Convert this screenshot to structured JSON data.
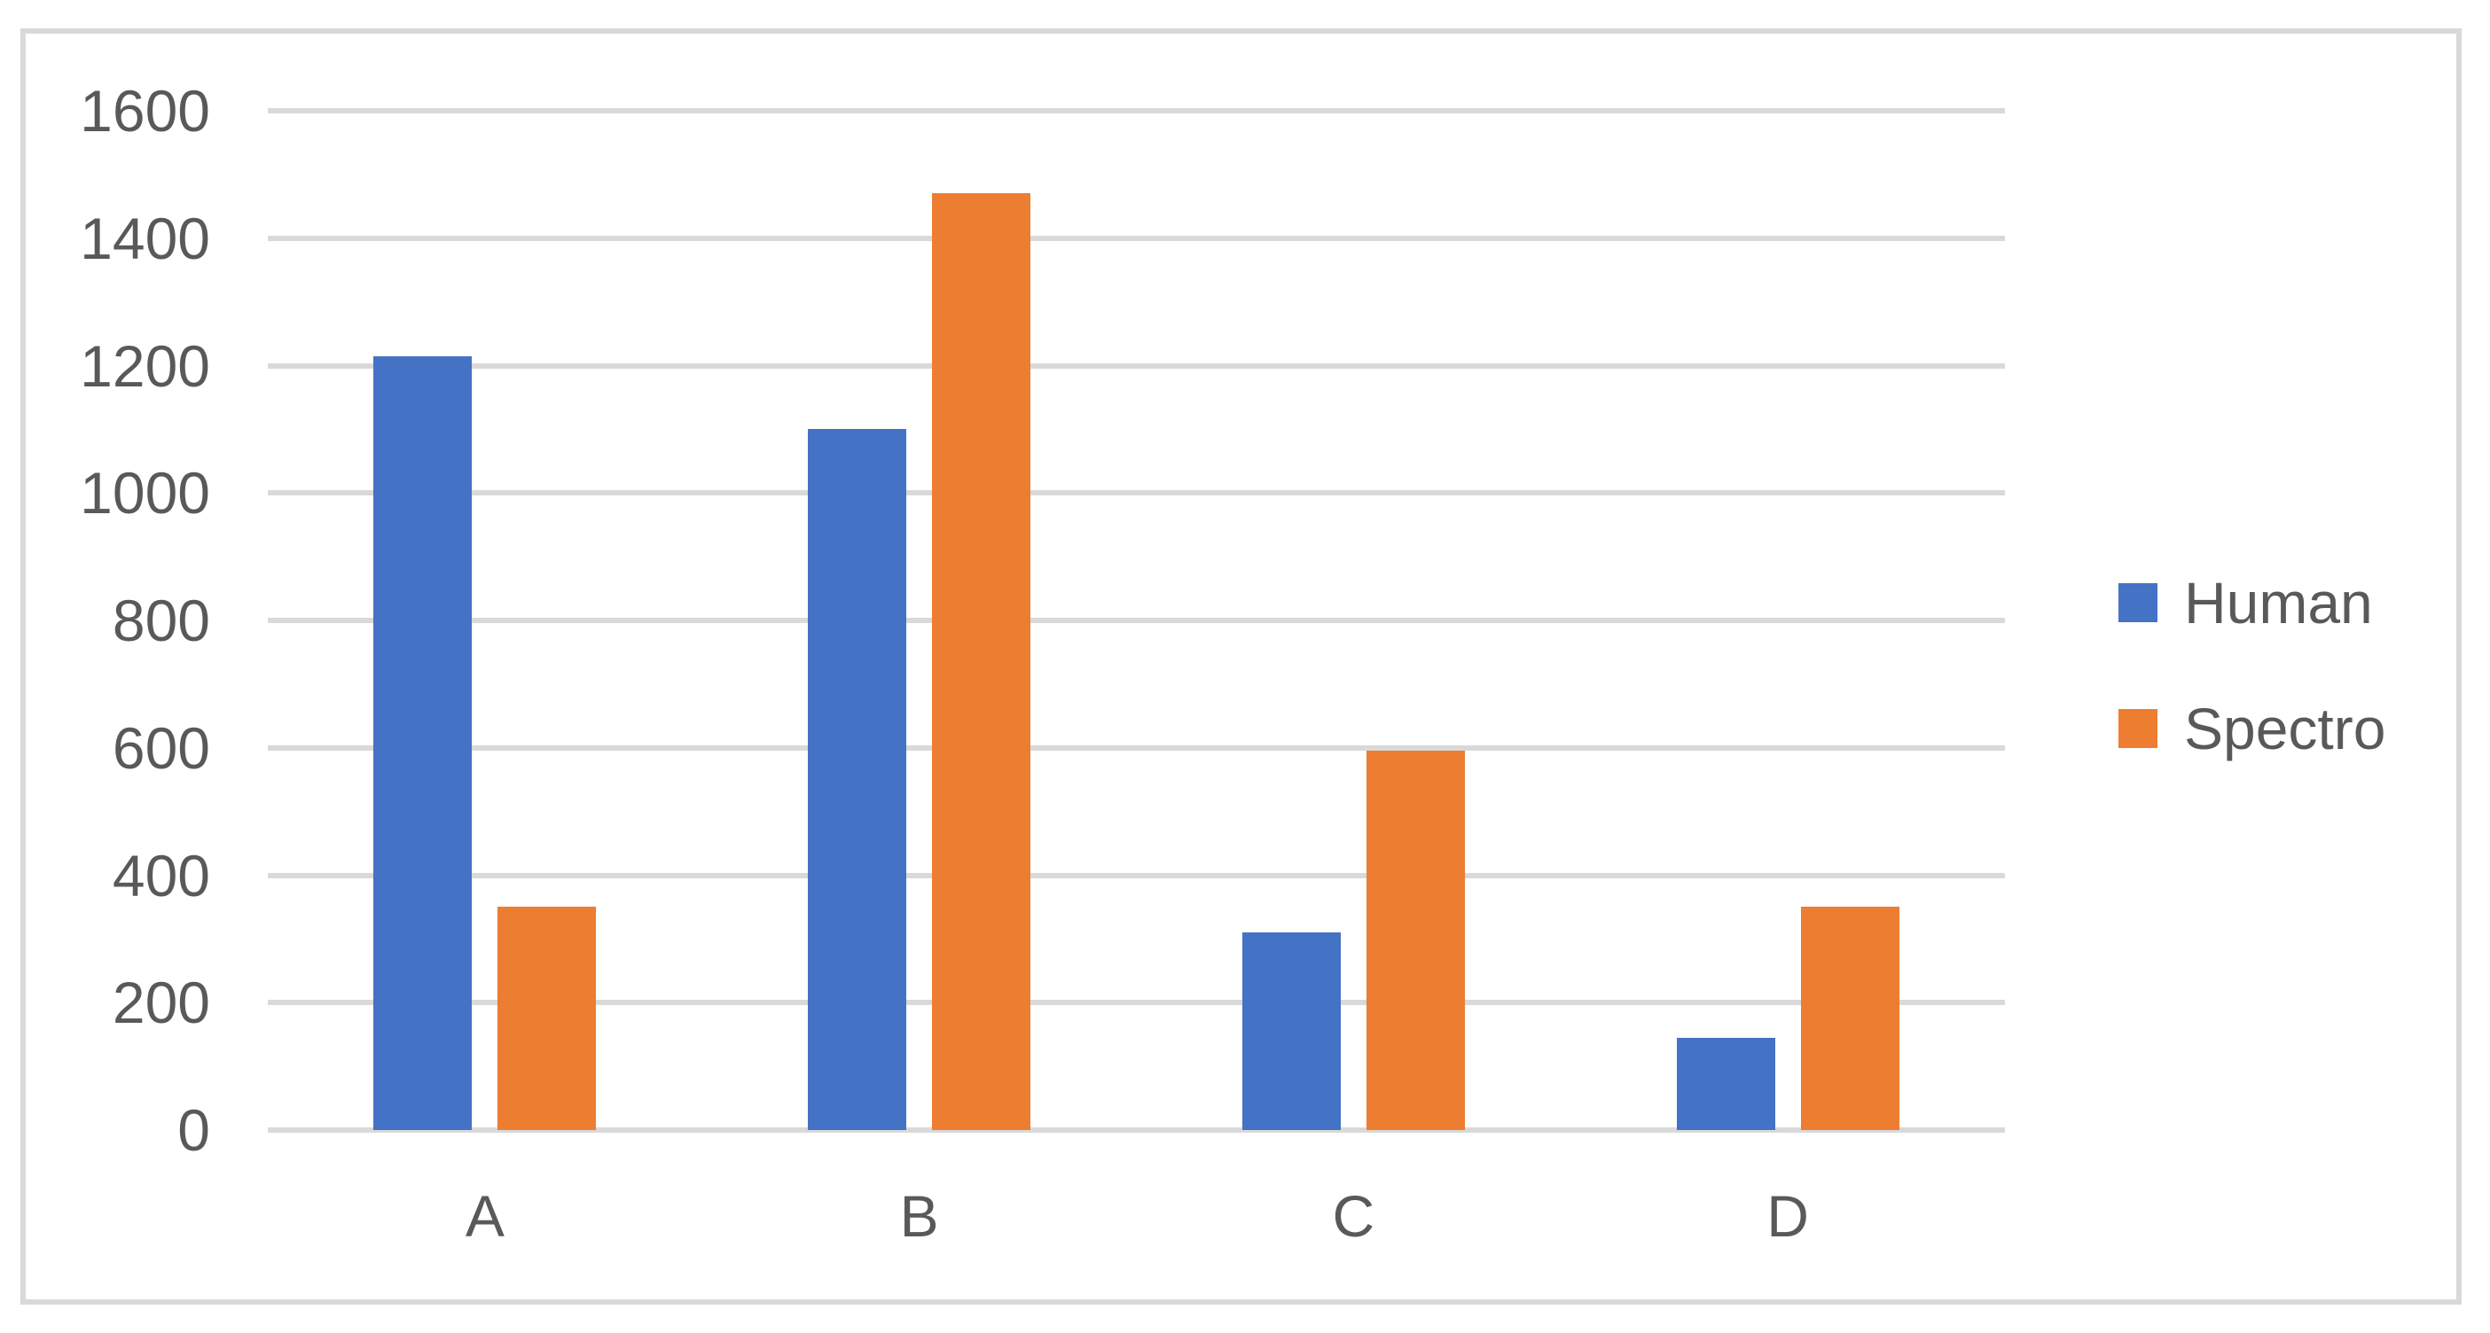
{
  "page": {
    "background": "#FFFFFF"
  },
  "chart": {
    "frame_border_color": "#D9D9D9",
    "gridline_color": "#D9D9D9",
    "text_color": "#595959",
    "plot_background": "#FFFFFF"
  },
  "chart_data": {
    "type": "bar",
    "title": "",
    "xlabel": "",
    "ylabel": "",
    "categories": [
      "A",
      "B",
      "C",
      "D"
    ],
    "series": [
      {
        "name": "Human",
        "color": "#4472C4",
        "values": [
          1215,
          1100,
          310,
          145
        ]
      },
      {
        "name": "Spectro",
        "color": "#ED7D31",
        "values": [
          350,
          1470,
          595,
          350
        ]
      }
    ],
    "ylim": [
      0,
      1600
    ],
    "ytick_step": 200,
    "ytick_labels": [
      "0",
      "200",
      "400",
      "600",
      "800",
      "1000",
      "1200",
      "1400",
      "1600"
    ],
    "grid": true,
    "legend": {
      "position": "right",
      "items": [
        "Human",
        "Spectro"
      ]
    }
  }
}
